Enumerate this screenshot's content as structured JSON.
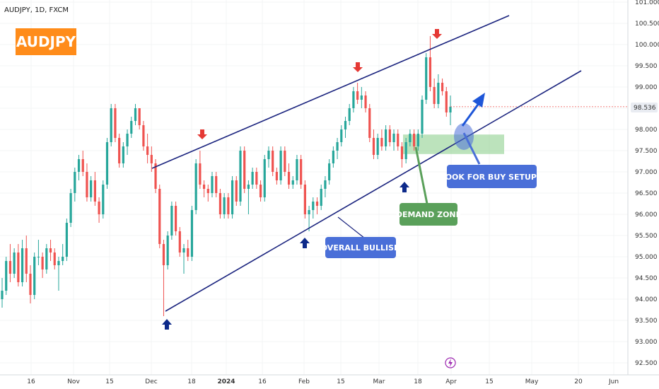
{
  "header": {
    "symbol": "AUDJPY, 1D, FXCM",
    "badge": "AUDJPY"
  },
  "colors": {
    "up": "#26a69a",
    "down": "#ef5350",
    "trendline": "#1a237e",
    "badge": "#ff8c1a",
    "label_blue": "#4a6fd8",
    "label_green": "#5aa05a",
    "zone_green": "#8fd08f",
    "price_tag": "#e9ecf2"
  },
  "annotations": {
    "overall_bullish": "OVERALL BULLISH",
    "demand_zone": "DEMAND ZONE",
    "look_for_buy": "LOOK FOR BUY SETUPS"
  },
  "current_price": "98.536",
  "event_icon": "lightning-icon",
  "chart_data": {
    "type": "candlestick",
    "title": "AUDJPY, 1D, FXCM",
    "ylim": [
      92.3,
      101.1
    ],
    "y_ticks": [
      "101.000",
      "100.500",
      "100.000",
      "99.500",
      "99.000",
      "98.500",
      "98.000",
      "97.500",
      "97.000",
      "96.500",
      "96.000",
      "95.500",
      "95.000",
      "94.500",
      "94.000",
      "93.500",
      "93.000",
      "92.500"
    ],
    "x_ticks": [
      "16",
      "Nov",
      "15",
      "Dec",
      "18",
      "2024",
      "16",
      "Feb",
      "15",
      "Mar",
      "18",
      "Apr",
      "15",
      "May",
      "20",
      "Jun"
    ],
    "last_price": 98.536,
    "candles": [
      [
        94.0,
        94.5,
        93.8,
        94.2
      ],
      [
        94.2,
        95.0,
        94.1,
        94.9
      ],
      [
        94.9,
        95.3,
        94.4,
        94.6
      ],
      [
        94.6,
        95.2,
        94.5,
        95.1
      ],
      [
        95.1,
        95.3,
        94.3,
        94.4
      ],
      [
        94.4,
        95.4,
        94.3,
        95.2
      ],
      [
        95.2,
        95.5,
        94.4,
        94.6
      ],
      [
        94.6,
        94.8,
        93.9,
        94.1
      ],
      [
        94.1,
        95.1,
        94.0,
        95.0
      ],
      [
        95.0,
        95.4,
        94.8,
        95.0
      ],
      [
        95.0,
        95.1,
        94.5,
        94.7
      ],
      [
        94.7,
        95.3,
        94.6,
        95.2
      ],
      [
        95.2,
        95.4,
        94.9,
        95.1
      ],
      [
        95.1,
        95.2,
        94.7,
        94.8
      ],
      [
        94.8,
        95.0,
        94.2,
        94.9
      ],
      [
        94.9,
        95.3,
        94.8,
        95.0
      ],
      [
        95.0,
        95.9,
        94.9,
        95.8
      ],
      [
        95.8,
        96.6,
        95.7,
        96.5
      ],
      [
        96.5,
        97.1,
        96.3,
        97.0
      ],
      [
        97.0,
        97.4,
        96.8,
        97.3
      ],
      [
        97.3,
        97.5,
        96.9,
        97.0
      ],
      [
        97.0,
        97.2,
        96.3,
        96.4
      ],
      [
        96.4,
        96.9,
        96.3,
        96.8
      ],
      [
        96.8,
        97.0,
        96.2,
        96.3
      ],
      [
        96.3,
        96.4,
        95.8,
        96.0
      ],
      [
        96.0,
        96.8,
        95.9,
        96.7
      ],
      [
        96.7,
        97.8,
        96.6,
        97.7
      ],
      [
        97.7,
        98.6,
        97.6,
        98.5
      ],
      [
        98.5,
        98.6,
        97.7,
        97.8
      ],
      [
        97.8,
        97.9,
        97.1,
        97.2
      ],
      [
        97.2,
        97.7,
        97.1,
        97.6
      ],
      [
        97.6,
        98.0,
        97.4,
        97.9
      ],
      [
        97.9,
        98.3,
        97.8,
        98.2
      ],
      [
        98.2,
        98.6,
        98.1,
        98.5
      ],
      [
        98.5,
        98.5,
        98.0,
        98.1
      ],
      [
        98.1,
        98.2,
        97.5,
        97.6
      ],
      [
        97.6,
        97.9,
        97.2,
        97.4
      ],
      [
        97.4,
        97.6,
        97.0,
        97.2
      ],
      [
        97.2,
        97.3,
        96.5,
        96.6
      ],
      [
        96.6,
        96.7,
        95.2,
        95.3
      ],
      [
        95.3,
        95.4,
        93.6,
        94.8
      ],
      [
        94.8,
        95.6,
        94.7,
        95.5
      ],
      [
        95.5,
        96.3,
        95.4,
        96.2
      ],
      [
        96.2,
        96.3,
        95.5,
        95.6
      ],
      [
        95.6,
        95.7,
        95.0,
        95.1
      ],
      [
        95.1,
        95.3,
        94.6,
        95.2
      ],
      [
        95.2,
        95.4,
        94.9,
        95.0
      ],
      [
        95.0,
        96.2,
        94.9,
        96.1
      ],
      [
        96.1,
        97.3,
        96.0,
        97.2
      ],
      [
        97.2,
        97.5,
        96.6,
        96.7
      ],
      [
        96.7,
        96.8,
        96.4,
        96.6
      ],
      [
        96.6,
        96.7,
        96.3,
        96.5
      ],
      [
        96.5,
        97.0,
        96.4,
        96.9
      ],
      [
        96.9,
        97.0,
        96.4,
        96.5
      ],
      [
        96.5,
        96.6,
        95.9,
        96.0
      ],
      [
        96.0,
        96.5,
        95.9,
        96.4
      ],
      [
        96.4,
        96.5,
        95.9,
        96.0
      ],
      [
        96.0,
        96.9,
        95.9,
        96.8
      ],
      [
        96.8,
        96.9,
        96.2,
        96.3
      ],
      [
        96.3,
        97.6,
        96.2,
        97.5
      ],
      [
        97.5,
        97.6,
        96.5,
        96.6
      ],
      [
        96.6,
        96.8,
        96.0,
        96.7
      ],
      [
        96.7,
        97.1,
        96.6,
        97.0
      ],
      [
        97.0,
        97.1,
        96.6,
        96.7
      ],
      [
        96.7,
        96.8,
        96.3,
        96.4
      ],
      [
        96.4,
        97.4,
        96.3,
        97.3
      ],
      [
        97.3,
        97.6,
        97.1,
        97.5
      ],
      [
        97.5,
        97.6,
        96.9,
        97.0
      ],
      [
        97.0,
        97.1,
        96.7,
        96.8
      ],
      [
        96.8,
        97.6,
        96.7,
        97.5
      ],
      [
        97.5,
        97.6,
        96.9,
        97.0
      ],
      [
        97.0,
        97.2,
        96.6,
        96.7
      ],
      [
        96.7,
        96.9,
        96.6,
        96.8
      ],
      [
        96.8,
        97.4,
        96.7,
        97.3
      ],
      [
        97.3,
        97.4,
        96.6,
        96.7
      ],
      [
        96.7,
        96.8,
        95.9,
        96.0
      ],
      [
        96.0,
        96.2,
        95.6,
        96.1
      ],
      [
        96.1,
        96.4,
        95.9,
        96.3
      ],
      [
        96.3,
        96.4,
        96.0,
        96.2
      ],
      [
        96.2,
        96.7,
        96.1,
        96.6
      ],
      [
        96.6,
        96.9,
        96.4,
        96.8
      ],
      [
        96.8,
        97.3,
        96.7,
        97.2
      ],
      [
        97.2,
        97.6,
        97.1,
        97.5
      ],
      [
        97.5,
        97.8,
        97.3,
        97.7
      ],
      [
        97.7,
        98.1,
        97.6,
        98.0
      ],
      [
        98.0,
        98.3,
        97.8,
        98.2
      ],
      [
        98.2,
        98.6,
        98.1,
        98.5
      ],
      [
        98.5,
        99.0,
        98.4,
        98.9
      ],
      [
        98.9,
        99.1,
        98.6,
        98.7
      ],
      [
        98.7,
        99.0,
        98.5,
        98.8
      ],
      [
        98.8,
        98.9,
        98.4,
        98.5
      ],
      [
        98.5,
        98.6,
        97.7,
        97.8
      ],
      [
        97.8,
        98.0,
        97.3,
        97.4
      ],
      [
        97.4,
        97.9,
        97.3,
        97.8
      ],
      [
        97.8,
        98.0,
        97.5,
        97.6
      ],
      [
        97.6,
        98.1,
        97.5,
        98.0
      ],
      [
        98.0,
        98.1,
        97.6,
        97.7
      ],
      [
        97.7,
        98.0,
        97.5,
        97.9
      ],
      [
        97.9,
        98.0,
        97.5,
        97.6
      ],
      [
        97.6,
        97.7,
        97.1,
        97.3
      ],
      [
        97.3,
        97.8,
        97.2,
        97.7
      ],
      [
        97.7,
        98.0,
        97.6,
        97.9
      ],
      [
        97.9,
        98.0,
        97.5,
        97.6
      ],
      [
        97.6,
        98.0,
        97.5,
        97.9
      ],
      [
        97.9,
        98.8,
        97.8,
        98.7
      ],
      [
        98.7,
        99.8,
        98.6,
        99.7
      ],
      [
        99.7,
        100.2,
        98.9,
        99.0
      ],
      [
        99.0,
        99.2,
        98.5,
        98.6
      ],
      [
        98.6,
        99.3,
        98.5,
        99.1
      ],
      [
        99.1,
        99.2,
        98.8,
        98.9
      ],
      [
        98.9,
        99.0,
        98.3,
        98.4
      ],
      [
        98.4,
        98.8,
        98.1,
        98.536
      ]
    ]
  }
}
